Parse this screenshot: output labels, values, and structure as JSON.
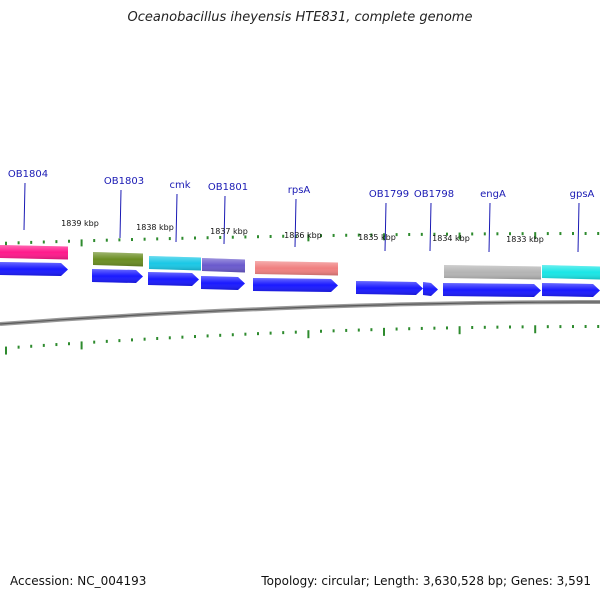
{
  "title": "Oceanobacillus iheyensis HTE831, complete genome",
  "accession": "Accession: NC_004193",
  "topology": "Topology: circular; Length: 3,630,528 bp; Genes: 3,591",
  "colors": {
    "forward_arrow": "#1a1aff",
    "tick": "#2e8b2e",
    "label": "#1a1ab4",
    "backbone": "#808080"
  },
  "scale_labels": [
    "1839 kbp",
    "1838 kbp",
    "1837 kbp",
    "1836 kbp",
    "1835 kbp",
    "1834 kbp",
    "1833 kbp"
  ],
  "genes": [
    {
      "label": "OB1804",
      "color": "#ff1a8c"
    },
    {
      "label": "OB1803",
      "color": "#6b8e23"
    },
    {
      "label": "cmk",
      "color": "#1ac8e6"
    },
    {
      "label": "OB1801",
      "color": "#6a5acd"
    },
    {
      "label": "rpsA",
      "color": "#f08080"
    },
    {
      "label": "OB1799",
      "color": "#1a1aff"
    },
    {
      "label": "OB1798",
      "color": "#1a1aff"
    },
    {
      "label": "engA",
      "color": "#b4b4b4"
    },
    {
      "label": "gpsA",
      "color": "#1ae6e6"
    }
  ]
}
